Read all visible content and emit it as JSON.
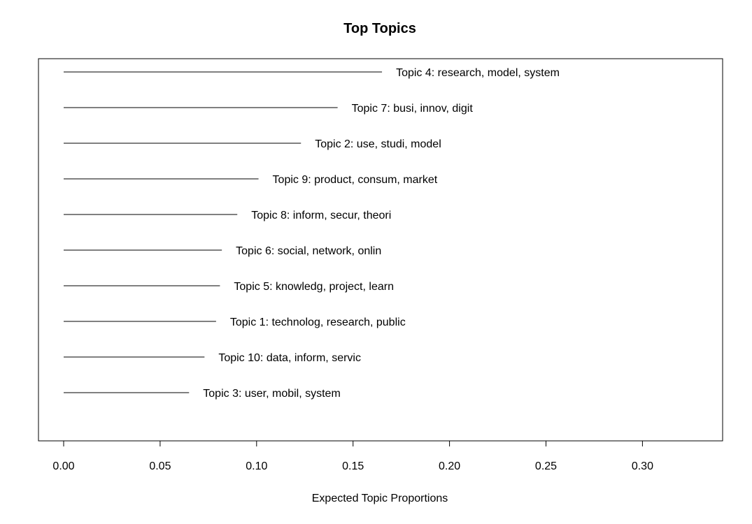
{
  "chart_data": {
    "type": "bar",
    "title": "Top Topics",
    "xlabel": "Expected Topic Proportions",
    "ylabel": "",
    "xlim": [
      -0.013,
      0.342
    ],
    "xticks": [
      0.0,
      0.05,
      0.1,
      0.15,
      0.2,
      0.25,
      0.3
    ],
    "xtick_labels": [
      "0.00",
      "0.05",
      "0.10",
      "0.15",
      "0.20",
      "0.25",
      "0.30"
    ],
    "grid": false,
    "legend": "none",
    "colors": {
      "line": "#000000",
      "text": "#000000",
      "background": "#ffffff"
    },
    "categories": [
      "Topic 4: research, model, system",
      "Topic 7: busi, innov, digit",
      "Topic 2: use, studi, model",
      "Topic 9: product, consum, market",
      "Topic 8: inform, secur, theori",
      "Topic 6: social, network, onlin",
      "Topic 5: knowledg, project, learn",
      "Topic 1: technolog, research, public",
      "Topic 10: data, inform, servic",
      "Topic 3: user, mobil, system"
    ],
    "values": [
      0.165,
      0.142,
      0.123,
      0.101,
      0.09,
      0.082,
      0.081,
      0.079,
      0.073,
      0.065
    ]
  }
}
